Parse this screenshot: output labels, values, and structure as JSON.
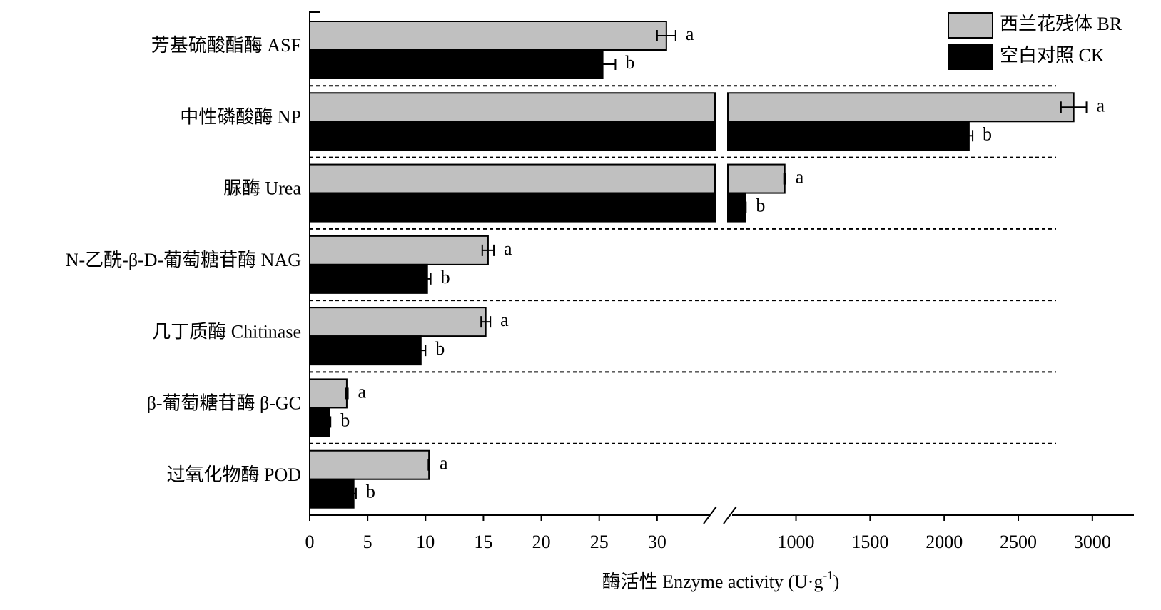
{
  "chart_data": {
    "type": "bar",
    "orientation": "horizontal",
    "categories": [
      "芳基硫酸酯酶 ASF",
      "中性磷酸酶 NP",
      "脲酶 Urea",
      "N-乙酰-β-D-葡萄糖苷酶 NAG",
      "几丁质酶 Chitinase",
      "β-葡萄糖苷酶 β-GC",
      "过氧化物酶 POD"
    ],
    "series": [
      {
        "name": "西兰花残体 BR",
        "color": "#c0c0c0",
        "values": [
          30.8,
          2874,
          924,
          15.4,
          15.2,
          3.2,
          10.3
        ],
        "errors": [
          0.8,
          86,
          5,
          0.5,
          0.4,
          0.1,
          0.05
        ],
        "letters": [
          "a",
          "a",
          "a",
          "a",
          "a",
          "a",
          "a"
        ]
      },
      {
        "name": "空白对照 CK",
        "color": "#000000",
        "values": [
          25.3,
          2167,
          657,
          10.15,
          9.6,
          1.7,
          3.8
        ],
        "errors": [
          1.1,
          25,
          5,
          0.3,
          0.4,
          0.1,
          0.2
        ],
        "letters": [
          "b",
          "b",
          "b",
          "b",
          "b",
          "b",
          "b"
        ]
      }
    ],
    "x_segments": [
      {
        "xlim": [
          0,
          35
        ],
        "xticks": [
          0,
          5,
          10,
          15,
          20,
          25,
          30
        ]
      },
      {
        "xlim": [
          540,
          3280
        ],
        "xticks": [
          1000,
          1500,
          2000,
          2500,
          3000
        ]
      }
    ],
    "xlabel": "酶活性 Enzyme activity (U·g",
    "xlabel_sup": "-1",
    "xlabel_end": ")",
    "legend": "upper right"
  }
}
